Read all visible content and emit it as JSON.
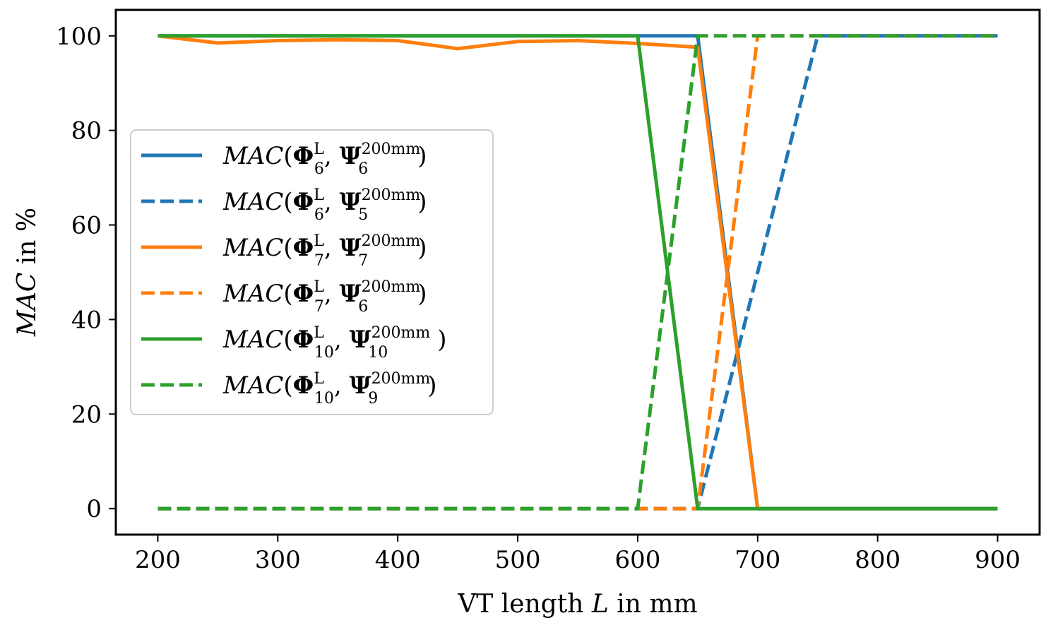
{
  "chart_data": {
    "type": "line",
    "xlabel_prefix": "VT length ",
    "xlabel_var": "L",
    "xlabel_suffix": " in mm",
    "ylabel_var": "MAC",
    "ylabel_suffix": " in %",
    "xlim": [
      165,
      935
    ],
    "ylim": [
      -5.5,
      105.5
    ],
    "xticks": [
      200,
      300,
      400,
      500,
      600,
      700,
      800,
      900
    ],
    "yticks": [
      0,
      20,
      40,
      60,
      80,
      100
    ],
    "legend_position": "center-left",
    "series": [
      {
        "id": "s1",
        "label": "MAC(Φ6L, Ψ6200mm)",
        "mode": "6",
        "ref": "6",
        "color": "#1f77b4",
        "dash": false,
        "x": [
          200,
          250,
          300,
          350,
          400,
          450,
          500,
          550,
          600,
          650,
          700,
          750,
          800,
          850,
          900
        ],
        "y": [
          100,
          100,
          100,
          100,
          100,
          100,
          100,
          100,
          100,
          100,
          0,
          0,
          0,
          0,
          0
        ]
      },
      {
        "id": "s2",
        "label": "MAC(Φ6L, Ψ5200mm)",
        "mode": "6",
        "ref": "5",
        "color": "#1f77b4",
        "dash": true,
        "x": [
          200,
          250,
          300,
          350,
          400,
          450,
          500,
          550,
          600,
          650,
          700,
          750,
          800,
          850,
          900
        ],
        "y": [
          0,
          0,
          0,
          0,
          0,
          0,
          0,
          0,
          0,
          0,
          50,
          100,
          100,
          100,
          100
        ]
      },
      {
        "id": "s3",
        "label": "MAC(Φ7L, Ψ7200mm)",
        "mode": "7",
        "ref": "7",
        "color": "#ff7f0e",
        "dash": false,
        "x": [
          200,
          250,
          300,
          350,
          400,
          450,
          500,
          550,
          600,
          650,
          700,
          750,
          800,
          850,
          900
        ],
        "y": [
          100,
          98.5,
          99,
          99.2,
          99,
          97.3,
          98.8,
          99,
          98.4,
          97.6,
          0,
          0,
          0,
          0,
          0
        ]
      },
      {
        "id": "s4",
        "label": "MAC(Φ7L, Ψ6200mm)",
        "mode": "7",
        "ref": "6",
        "color": "#ff7f0e",
        "dash": true,
        "x": [
          200,
          250,
          300,
          350,
          400,
          450,
          500,
          550,
          600,
          650,
          700,
          750,
          800,
          850,
          900
        ],
        "y": [
          0,
          0,
          0,
          0,
          0,
          0,
          0,
          0,
          0,
          0,
          100,
          100,
          100,
          100,
          100
        ]
      },
      {
        "id": "s5",
        "label": "MAC(Φ10L, Ψ10200mm)",
        "mode": "10",
        "ref": "10",
        "color": "#2ca02c",
        "dash": false,
        "x": [
          200,
          250,
          300,
          350,
          400,
          450,
          500,
          550,
          600,
          650,
          700,
          750,
          800,
          850,
          900
        ],
        "y": [
          100,
          100,
          100,
          100,
          100,
          100,
          100,
          100,
          100,
          0,
          0,
          0,
          0,
          0,
          0
        ]
      },
      {
        "id": "s6",
        "label": "MAC(Φ10L, Ψ9200mm)",
        "mode": "10",
        "ref": "9",
        "color": "#2ca02c",
        "dash": true,
        "x": [
          200,
          250,
          300,
          350,
          400,
          450,
          500,
          550,
          600,
          650,
          700,
          750,
          800,
          850,
          900
        ],
        "y": [
          0,
          0,
          0,
          0,
          0,
          0,
          0,
          0,
          0,
          100,
          100,
          100,
          100,
          100,
          100
        ]
      }
    ],
    "legend_text": {
      "mac": "MAC",
      "phi": "Φ",
      "psi": "Ψ",
      "L": "L",
      "sup": "200mm"
    }
  }
}
